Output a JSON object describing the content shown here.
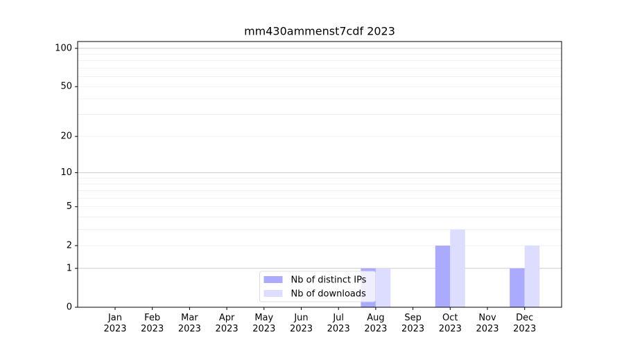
{
  "chart_data": {
    "type": "bar",
    "title": "mm430ammenst7cdf 2023",
    "categories": [
      "Jan\n2023",
      "Feb\n2023",
      "Mar\n2023",
      "Apr\n2023",
      "May\n2023",
      "Jun\n2023",
      "Jul\n2023",
      "Aug\n2023",
      "Sep\n2023",
      "Oct\n2023",
      "Nov\n2023",
      "Dec\n2023"
    ],
    "series": [
      {
        "name": "Nb of distinct IPs",
        "color": "#aaaaff",
        "values": [
          0,
          0,
          0,
          0,
          0,
          0,
          0,
          1,
          0,
          2,
          0,
          1
        ]
      },
      {
        "name": "Nb of downloads",
        "color": "#ddddff",
        "values": [
          0,
          0,
          0,
          0,
          0,
          0,
          0,
          1,
          0,
          3,
          0,
          2
        ]
      }
    ],
    "y_scale": "log1p",
    "ylim": [
      0,
      113
    ],
    "yticks": [
      0,
      1,
      2,
      5,
      10,
      20,
      50,
      100
    ],
    "grid_lines": {
      "major": [
        1,
        10,
        100
      ],
      "minor": [
        2,
        3,
        4,
        5,
        6,
        7,
        8,
        9,
        20,
        30,
        40,
        50,
        60,
        70,
        80,
        90
      ]
    },
    "legend": "lower center"
  }
}
